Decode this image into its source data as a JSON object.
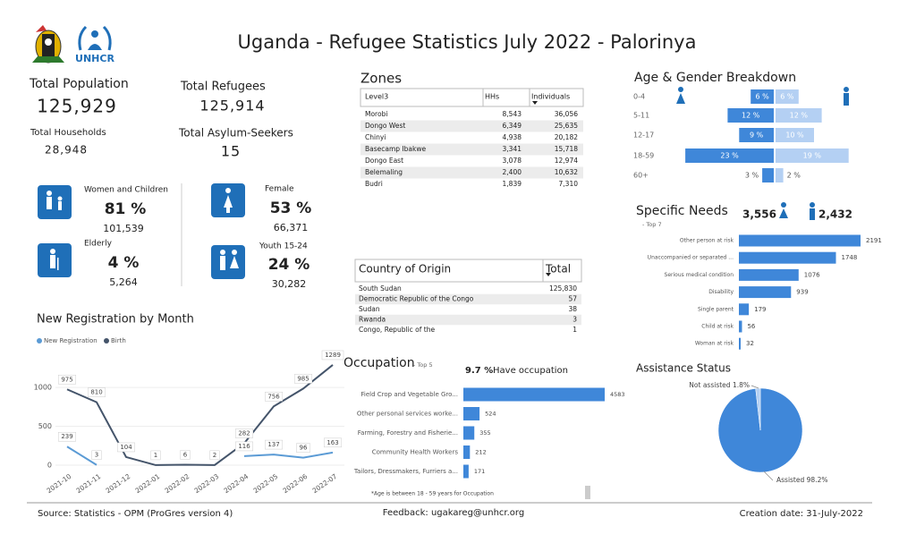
{
  "header": {
    "title": "Uganda - Refugee Statistics July 2022 - Palorinya",
    "logo_text": "UNHCR"
  },
  "totals": [
    {
      "label": "Total Population",
      "value": "125,929"
    },
    {
      "label": "Total Refugees",
      "value": "125,914"
    },
    {
      "label": "Total Households",
      "value": "28,948"
    },
    {
      "label": "Total Asylum-Seekers",
      "value": "15"
    }
  ],
  "groups": [
    {
      "label": "Women and Children",
      "percent": "81 %",
      "count": "101,539"
    },
    {
      "label": "Elderly",
      "percent": "4 %",
      "count": "5,264"
    },
    {
      "label": "Female",
      "percent": "53 %",
      "count": "66,371"
    },
    {
      "label": "Youth 15-24",
      "percent": "24 %",
      "count": "30,282"
    }
  ],
  "zones": {
    "title": "Zones",
    "columns": [
      "Level3",
      "HHs",
      "Individuals"
    ],
    "rows": [
      [
        "Morobi",
        "8,543",
        "36,056"
      ],
      [
        "Dongo West",
        "6,349",
        "25,635"
      ],
      [
        "Chinyi",
        "4,938",
        "20,182"
      ],
      [
        "Basecamp Ibakwe",
        "3,341",
        "15,718"
      ],
      [
        "Dongo East",
        "3,078",
        "12,974"
      ],
      [
        "Belemaling",
        "2,400",
        "10,632"
      ],
      [
        "Budri",
        "1,839",
        "7,310"
      ]
    ]
  },
  "country_of_origin": {
    "columns": [
      "Country of Origin",
      "Total"
    ],
    "rows": [
      [
        "South Sudan",
        "125,830"
      ],
      [
        "Democratic Republic of the Congo",
        "57"
      ],
      [
        "Sudan",
        "38"
      ],
      [
        "Rwanda",
        "3"
      ],
      [
        "Congo, Republic of the",
        "1"
      ]
    ]
  },
  "chart_data": [
    {
      "type": "line",
      "title": "New Registration by Month",
      "categories": [
        "2021-10",
        "2021-11",
        "2021-12",
        "2022-01",
        "2022-02",
        "2022-03",
        "2022-04",
        "2022-05",
        "2022-06",
        "2022-07"
      ],
      "series": [
        {
          "name": "New Registration",
          "color": "#5b9bd5",
          "values": [
            239,
            3,
            null,
            null,
            null,
            null,
            116,
            137,
            96,
            163
          ]
        },
        {
          "name": "Birth",
          "color": "#44546a",
          "values": [
            975,
            810,
            104,
            1,
            6,
            2,
            282,
            756,
            985,
            1289
          ]
        }
      ],
      "ylim": [
        0,
        1300
      ],
      "yticks": [
        0,
        500,
        1000
      ],
      "grid": true
    },
    {
      "type": "pyramid",
      "title": "Age & Gender Breakdown",
      "categories": [
        "0-4",
        "5-11",
        "12-17",
        "18-59",
        "60+"
      ],
      "series": [
        {
          "color": "#3f87d9",
          "values": [
            6,
            12,
            9,
            23,
            3
          ],
          "value_labels": [
            "6 %",
            "12 %",
            "9 %",
            "23 %",
            "3 %"
          ]
        },
        {
          "color": "#b4d0f3",
          "values": [
            6,
            12,
            10,
            19,
            2
          ],
          "value_labels": [
            "6 %",
            "12 %",
            "10 %",
            "19 %",
            "2 %"
          ]
        }
      ]
    },
    {
      "type": "hbar",
      "title": "Specific Needs",
      "subtitle": "- Top 7",
      "gender_totals": [
        "3,556",
        "2,432"
      ],
      "categories": [
        "Other person at risk",
        "Unaccompanied or separated ...",
        "Serious medical condition",
        "Disability",
        "Single parent",
        "Child at risk",
        "Woman at risk"
      ],
      "values": [
        2191,
        1748,
        1076,
        939,
        179,
        56,
        32
      ],
      "color": "#3f87d9"
    },
    {
      "type": "hbar",
      "title": "Occupation",
      "subtitle": "- Top 5",
      "highlight_value": "9.7 %",
      "highlight_label": "Have occupation",
      "categories": [
        "Field Crop and Vegetable Gro...",
        "Other personal services worke...",
        "Farming, Forestry and Fisherie...",
        "Community Health Workers",
        "Tailors, Dressmakers, Furriers a..."
      ],
      "values": [
        4583,
        524,
        355,
        212,
        171
      ],
      "color": "#3f87d9",
      "note": "*Age is between 18 - 59 years for Occupation"
    },
    {
      "type": "pie",
      "title": "Assistance Status",
      "categories": [
        "Assisted",
        "Not assisted"
      ],
      "values": [
        98.2,
        1.8
      ],
      "value_labels": [
        "98.2%",
        "1.8%"
      ],
      "colors": [
        "#3f87d9",
        "#b4d0f3"
      ]
    }
  ],
  "footer": {
    "source": "Source: Statistics - OPM (ProGres version 4)",
    "feedback": "Feedback: ugakareg@unhcr.org",
    "created": "Creation date: 31-July-2022"
  }
}
